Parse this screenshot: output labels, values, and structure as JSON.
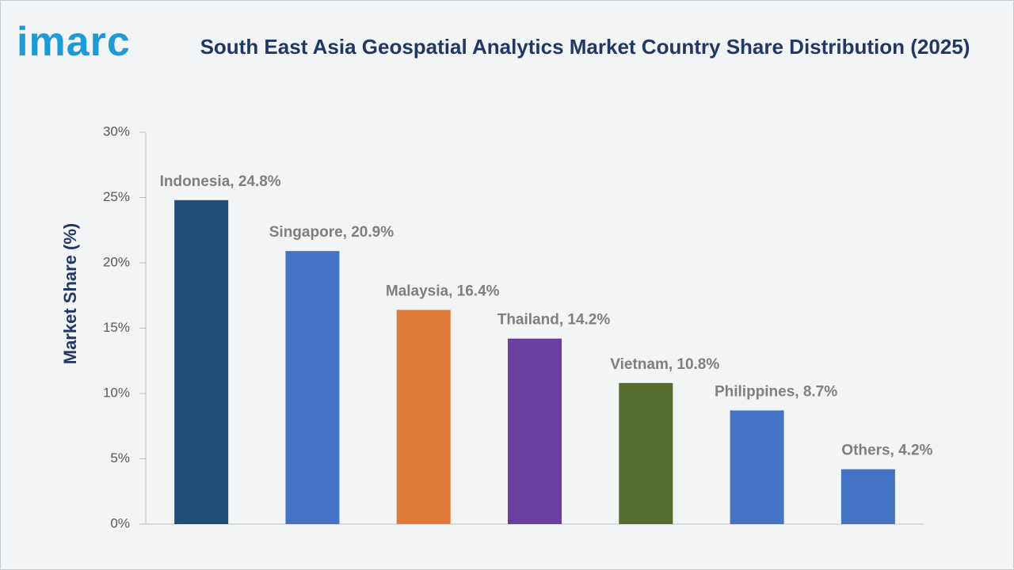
{
  "logo": "imarc",
  "chart_data": {
    "type": "bar",
    "title": "South East Asia Geospatial Analytics Market Country Share Distribution (2025)",
    "y_label": "Market Share (%)",
    "values": [
      24.8,
      20.9,
      16.4,
      14.2,
      10.8,
      8.7,
      4.2
    ],
    "value_labels": [
      "Indonesia, 24.8%",
      "Singapore, 20.9%",
      "Malaysia, 16.4%",
      "Thailand, 14.2%",
      "Vietnam, 10.8%",
      "Philippines, 8.7%",
      "Others, 4.2%"
    ],
    "colors": [
      "#1f4e79",
      "#4472c4",
      "#e07b39",
      "#6b3fa0",
      "#556b2f",
      "#4472c4",
      "#4472c4"
    ],
    "ylim": [
      0,
      30
    ],
    "yticks": [
      {
        "value": 0,
        "label": "0%"
      },
      {
        "value": 5,
        "label": "5%"
      },
      {
        "value": 10,
        "label": "10%"
      },
      {
        "value": 15,
        "label": "15%"
      },
      {
        "value": 20,
        "label": "20%"
      },
      {
        "value": 25,
        "label": "25%"
      },
      {
        "value": 30,
        "label": "30%"
      }
    ],
    "grid": false
  }
}
